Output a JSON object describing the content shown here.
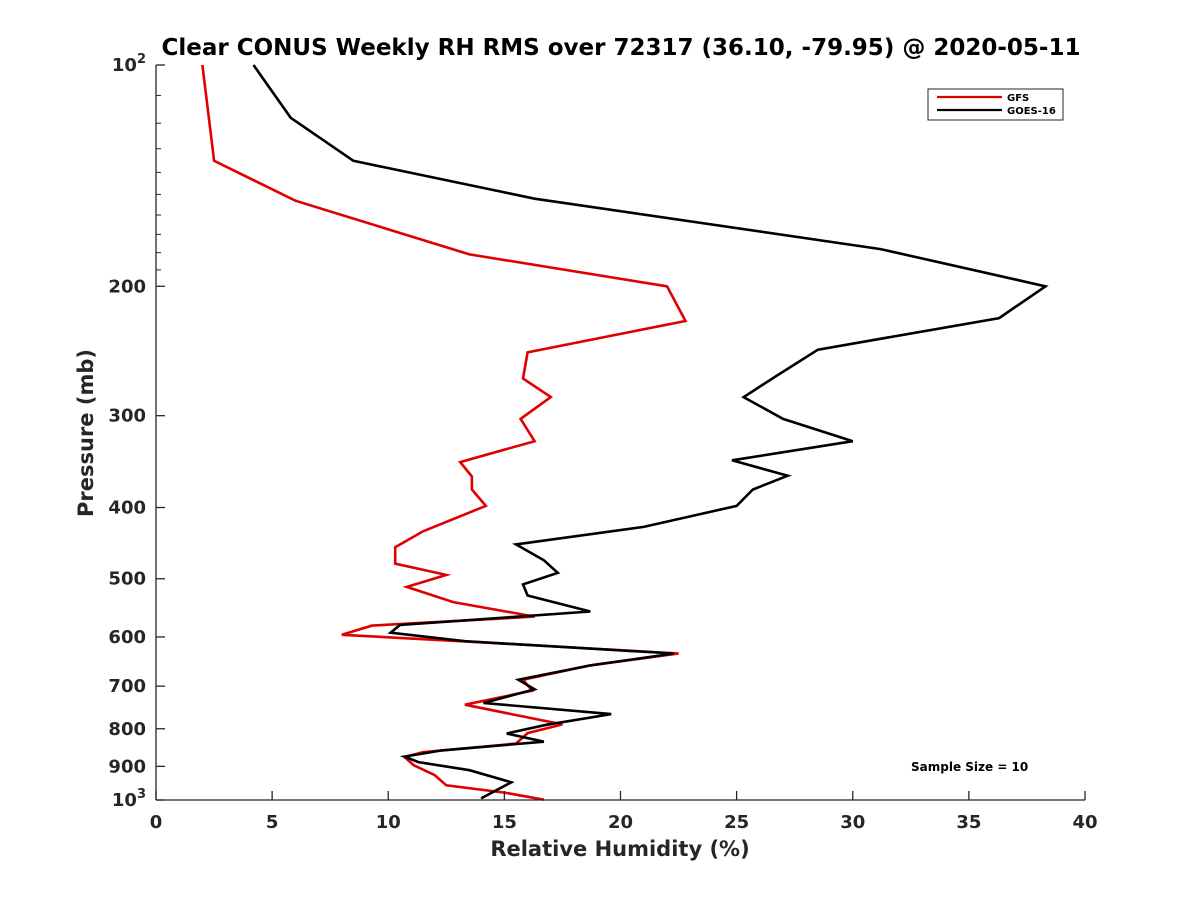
{
  "chart_data": {
    "type": "line",
    "title": "Clear CONUS Weekly RH RMS over 72317 (36.10, -79.95) @ 2020-05-11",
    "xlabel": "Relative Humidity (%)",
    "ylabel": "Pressure (mb)",
    "xlim": [
      0,
      40
    ],
    "ylim": [
      100,
      1000
    ],
    "y_scale": "log",
    "y_reversed": true,
    "grid": false,
    "legend_position": "top-right",
    "x_ticks": [
      "0",
      "5",
      "10",
      "15",
      "20",
      "25",
      "30",
      "35",
      "40"
    ],
    "y_ticks": [
      {
        "value": 100,
        "base": "10",
        "exp": "2"
      },
      {
        "value": 200,
        "label": "200"
      },
      {
        "value": 300,
        "label": "300"
      },
      {
        "value": 400,
        "label": "400"
      },
      {
        "value": 500,
        "label": "500"
      },
      {
        "value": 600,
        "label": "600"
      },
      {
        "value": 700,
        "label": "700"
      },
      {
        "value": 800,
        "label": "800"
      },
      {
        "value": 900,
        "label": "900"
      },
      {
        "value": 1000,
        "base": "10",
        "exp": "3"
      }
    ],
    "annotation": "Sample Size = 10",
    "series": [
      {
        "name": "GFS",
        "color": "#e00000",
        "points": [
          [
            2.0,
            100
          ],
          [
            2.5,
            135
          ],
          [
            6.0,
            153
          ],
          [
            13.5,
            181
          ],
          [
            22.0,
            200
          ],
          [
            22.8,
            223
          ],
          [
            16.0,
            246
          ],
          [
            15.8,
            267
          ],
          [
            17.0,
            283
          ],
          [
            15.7,
            303
          ],
          [
            16.3,
            325
          ],
          [
            13.1,
            347
          ],
          [
            13.6,
            363
          ],
          [
            13.6,
            378
          ],
          [
            14.2,
            398
          ],
          [
            11.5,
            431
          ],
          [
            10.3,
            453
          ],
          [
            10.3,
            477
          ],
          [
            12.5,
            494
          ],
          [
            10.8,
            513
          ],
          [
            12.8,
            538
          ],
          [
            16.3,
            563
          ],
          [
            9.3,
            579
          ],
          [
            8.0,
            596
          ],
          [
            13.5,
            609
          ],
          [
            22.5,
            632
          ],
          [
            18.7,
            656
          ],
          [
            15.8,
            686
          ],
          [
            16.2,
            710
          ],
          [
            13.3,
            742
          ],
          [
            15.3,
            764
          ],
          [
            17.5,
            789
          ],
          [
            16.0,
            811
          ],
          [
            15.5,
            838
          ],
          [
            11.5,
            861
          ],
          [
            10.7,
            874
          ],
          [
            11.1,
            897
          ],
          [
            12.0,
            925
          ],
          [
            12.5,
            955
          ],
          [
            15.0,
            977
          ],
          [
            16.7,
            999
          ]
        ]
      },
      {
        "name": "GOES-16",
        "color": "#000000",
        "points": [
          [
            4.2,
            100
          ],
          [
            5.8,
            118
          ],
          [
            8.5,
            135
          ],
          [
            16.3,
            152
          ],
          [
            31.2,
            178
          ],
          [
            38.3,
            200
          ],
          [
            36.3,
            221
          ],
          [
            28.5,
            244
          ],
          [
            26.7,
            265
          ],
          [
            25.3,
            283
          ],
          [
            27.0,
            303
          ],
          [
            30.0,
            325
          ],
          [
            24.8,
            345
          ],
          [
            27.2,
            362
          ],
          [
            25.7,
            378
          ],
          [
            25.0,
            398
          ],
          [
            21.0,
            425
          ],
          [
            15.5,
            449
          ],
          [
            16.7,
            472
          ],
          [
            17.3,
            491
          ],
          [
            15.8,
            509
          ],
          [
            16.0,
            527
          ],
          [
            18.7,
            554
          ],
          [
            10.5,
            578
          ],
          [
            10.1,
            592
          ],
          [
            13.3,
            608
          ],
          [
            22.3,
            632
          ],
          [
            18.7,
            656
          ],
          [
            15.6,
            686
          ],
          [
            16.3,
            707
          ],
          [
            14.1,
            738
          ],
          [
            19.6,
            764
          ],
          [
            16.8,
            790
          ],
          [
            15.1,
            812
          ],
          [
            16.7,
            833
          ],
          [
            12.3,
            856
          ],
          [
            10.7,
            873
          ],
          [
            11.3,
            888
          ],
          [
            13.5,
            911
          ],
          [
            15.3,
            946
          ],
          [
            14.0,
            995
          ]
        ]
      }
    ]
  }
}
